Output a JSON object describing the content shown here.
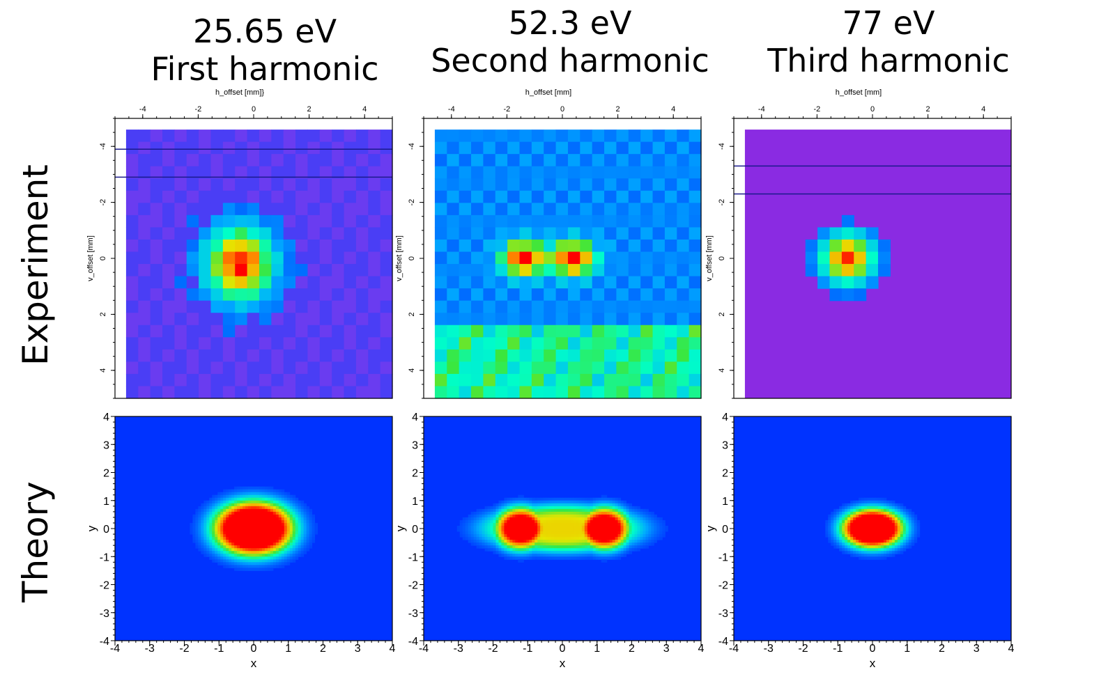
{
  "titles": [
    {
      "energy": "25.65 eV",
      "name": "First harmonic"
    },
    {
      "energy": "52.3 eV",
      "name": "Second harmonic"
    },
    {
      "energy": "77 eV",
      "name": "Third harmonic"
    }
  ],
  "row_labels": {
    "experiment": "Experiment",
    "theory": "Theory"
  },
  "colors": {
    "background": "#0033ff",
    "peak": "#ff0000",
    "axis": "#000000"
  },
  "chart_data": [
    {
      "type": "heatmap",
      "row": "Experiment",
      "column": "25.65 eV First harmonic",
      "xlabel": "h_offset [mm]}",
      "ylabel": "v_offset [mm]",
      "xlim": [
        -5,
        5
      ],
      "ylim": [
        -5,
        5
      ],
      "y_inverted": true,
      "x_axis": "top",
      "xticks": [
        "-4",
        "-2",
        "0",
        "2",
        "4"
      ],
      "yticks": [
        "-4",
        "-2",
        "0",
        "2",
        "4"
      ],
      "background_level": 0.06,
      "lobes": [
        {
          "x": -0.5,
          "y": 0.2,
          "sx": 1.2,
          "sy": 1.3,
          "amp": 0.95
        }
      ],
      "features": [
        "horizontal lines at y=-3.9 and y=-2.9"
      ]
    },
    {
      "type": "heatmap",
      "row": "Experiment",
      "column": "52.3 eV Second harmonic",
      "xlabel": "h_offset [mm]",
      "ylabel": "v_offset [mm]",
      "xlim": [
        -5,
        5
      ],
      "ylim": [
        -5,
        5
      ],
      "y_inverted": true,
      "x_axis": "top",
      "xticks": [
        "-4",
        "-2",
        "0",
        "2",
        "4"
      ],
      "yticks": [
        "-4",
        "-2",
        "0",
        "2",
        "4"
      ],
      "background_level": 0.18,
      "lobes": [
        {
          "x": -1.4,
          "y": 0,
          "sx": 0.75,
          "sy": 0.6,
          "amp": 0.95
        },
        {
          "x": 0.4,
          "y": 0,
          "sx": 0.75,
          "sy": 0.6,
          "amp": 0.95
        }
      ],
      "features": [
        "elevated band for y > 2.5"
      ]
    },
    {
      "type": "heatmap",
      "row": "Experiment",
      "column": "77 eV Third harmonic",
      "xlabel": "h_offset [mm]",
      "ylabel": "v_offset [mm]",
      "xlim": [
        -5,
        5
      ],
      "ylim": [
        -5,
        5
      ],
      "y_inverted": true,
      "x_axis": "top",
      "xticks": [
        "-4",
        "-2",
        "0",
        "2",
        "4"
      ],
      "yticks": [
        "-4",
        "-2",
        "0",
        "2",
        "4"
      ],
      "background_level": 0.0,
      "lobes": [
        {
          "x": -0.9,
          "y": 0,
          "sx": 1.0,
          "sy": 0.95,
          "amp": 0.97
        }
      ],
      "features": [
        "horizontal lines at y=-3.3 and y=-2.3"
      ]
    },
    {
      "type": "heatmap",
      "row": "Theory",
      "column": "25.65 eV First harmonic",
      "xlabel": "x",
      "ylabel": "y",
      "xlim": [
        -4,
        4
      ],
      "ylim": [
        -4,
        4
      ],
      "xticks": [
        "-4",
        "-3",
        "-2",
        "-1",
        "0",
        "1",
        "2",
        "3",
        "4"
      ],
      "yticks": [
        "4",
        "3",
        "2",
        "1",
        "0",
        "-1",
        "-2",
        "-3",
        "-4"
      ],
      "lobes": [
        {
          "x": 0,
          "y": 0,
          "sx": 1.25,
          "sy": 1.05,
          "amp": 1.0
        }
      ]
    },
    {
      "type": "heatmap",
      "row": "Theory",
      "column": "52.3 eV Second harmonic",
      "xlabel": "x",
      "ylabel": "y",
      "xlim": [
        -4,
        4
      ],
      "ylim": [
        -4,
        4
      ],
      "xticks": [
        "-4",
        "-3",
        "-2",
        "-1",
        "0",
        "1",
        "2",
        "3",
        "4"
      ],
      "yticks": [
        "4",
        "3",
        "2",
        "1",
        "0",
        "-1",
        "-2",
        "-3",
        "-4"
      ],
      "lobes": [
        {
          "x": -1.2,
          "y": 0,
          "sx": 0.8,
          "sy": 0.8,
          "amp": 0.9
        },
        {
          "x": 1.2,
          "y": 0,
          "sx": 0.8,
          "sy": 0.8,
          "amp": 0.9
        }
      ]
    },
    {
      "type": "heatmap",
      "row": "Theory",
      "column": "77 eV Third harmonic",
      "xlabel": "x",
      "ylabel": "y",
      "xlim": [
        -4,
        4
      ],
      "ylim": [
        -4,
        4
      ],
      "xticks": [
        "-4",
        "-3",
        "-2",
        "-1",
        "0",
        "1",
        "2",
        "3",
        "4"
      ],
      "yticks": [
        "4",
        "3",
        "2",
        "1",
        "0",
        "-1",
        "-2",
        "-3",
        "-4"
      ],
      "lobes": [
        {
          "x": 0,
          "y": 0,
          "sx": 0.95,
          "sy": 0.75,
          "amp": 1.0
        }
      ]
    }
  ]
}
